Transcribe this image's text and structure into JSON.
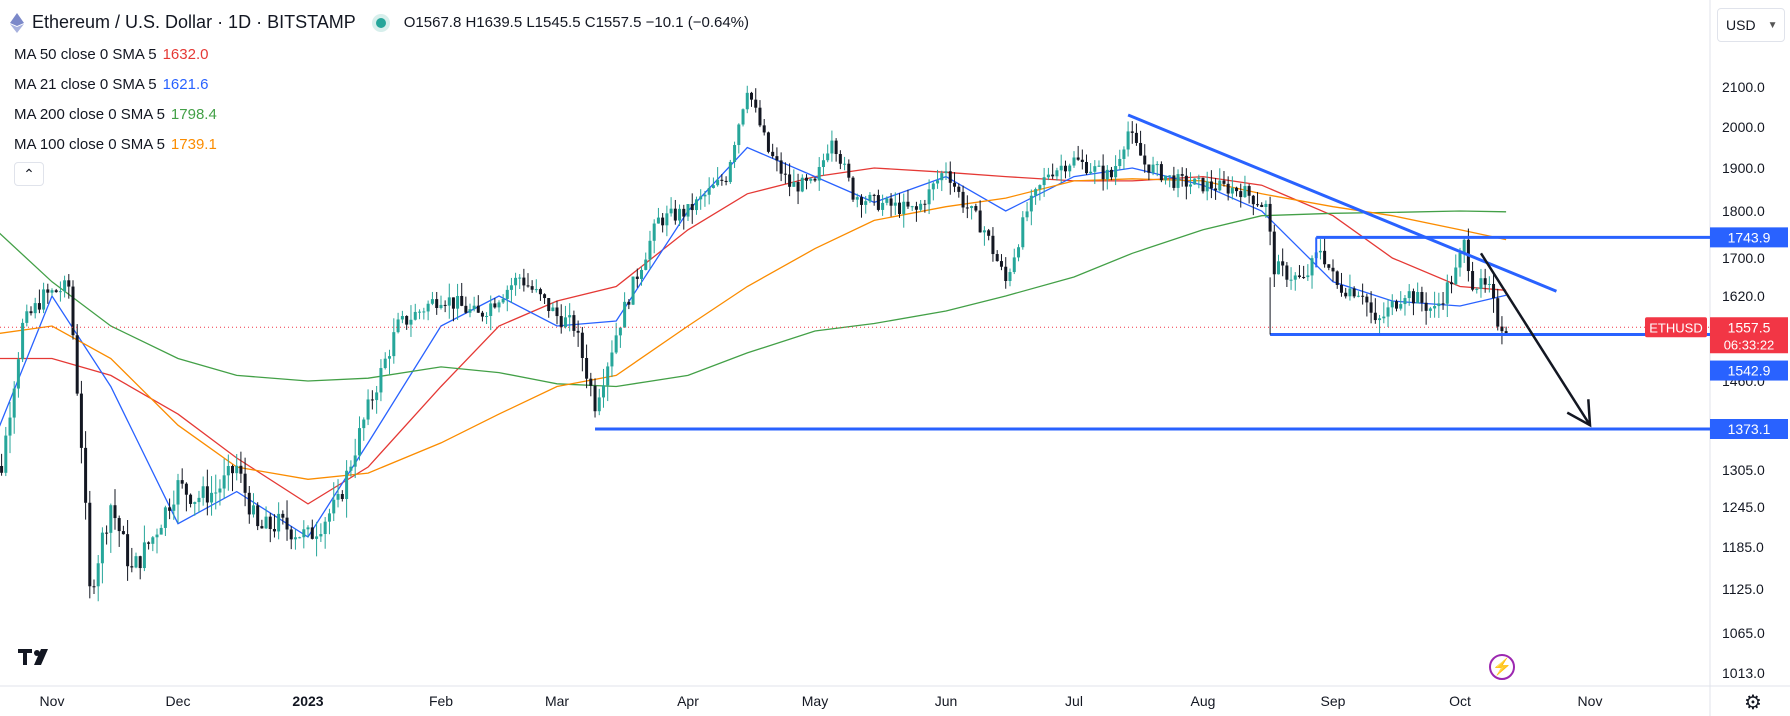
{
  "header": {
    "symbol_title": "Ethereum / U.S. Dollar · 1D · BITSTAMP",
    "ohlc": "O1567.8 H1639.5 L1545.5 C1557.5 −10.1 (−0.64%)"
  },
  "indicators": [
    {
      "label": "MA 50 close 0 SMA 5",
      "value": "1632.0",
      "color": "#e53935"
    },
    {
      "label": "MA 21 close 0 SMA 5",
      "value": "1621.6",
      "color": "#2962ff"
    },
    {
      "label": "MA 200 close 0 SMA 5",
      "value": "1798.4",
      "color": "#43a047"
    },
    {
      "label": "MA 100 close 0 SMA 5",
      "value": "1739.1",
      "color": "#fb8c00"
    }
  ],
  "currency_selector": "USD",
  "icons": {
    "collapse": "chevron-up-icon",
    "logo": "tradingview-logo",
    "flash": "lightning-icon",
    "settings": "gear-icon"
  },
  "colors": {
    "up": "#26a69a",
    "down": "#131722",
    "level": "#2962ff",
    "trend": "#2962ff",
    "price_tag": "#f23645"
  },
  "chart_data": {
    "type": "candlestick",
    "symbol": "ETHUSD",
    "y_axis": {
      "ticks": [
        "2100.0",
        "2000.0",
        "1900.0",
        "1800.0",
        "1700.0",
        "1620.0",
        "1540.0",
        "1460.0",
        "1373.1",
        "1305.0",
        "1245.0",
        "1185.0",
        "1125.0",
        "1065.0",
        "1013.0"
      ],
      "range": [
        1000,
        2160
      ]
    },
    "x_axis": {
      "ticks": [
        "Nov",
        "Dec",
        "2023",
        "Feb",
        "Mar",
        "Apr",
        "May",
        "Jun",
        "Jul",
        "Aug",
        "Sep",
        "Oct",
        "Nov"
      ],
      "dates": [
        "2022-11-01",
        "2022-12-01",
        "2023-01-01",
        "2023-02-01",
        "2023-03-01",
        "2023-04-01",
        "2023-05-01",
        "2023-06-01",
        "2023-07-01",
        "2023-08-01",
        "2023-09-01",
        "2023-10-01",
        "2023-11-01"
      ],
      "bold": [
        "2023"
      ]
    },
    "price_labels": [
      {
        "text": "1743.9",
        "price": 1743.9,
        "color": "#2962ff"
      },
      {
        "text": "ETHUSD",
        "price": 1557.5,
        "color": "#f23645",
        "role": "symbol"
      },
      {
        "text": "1557.5",
        "price": 1557.5,
        "color": "#f23645"
      },
      {
        "text": "06:33:22",
        "price": 1557.5,
        "color": "#f23645",
        "role": "countdown"
      },
      {
        "text": "1542.9",
        "price": 1542.9,
        "color": "#2962ff"
      },
      {
        "text": "1373.1",
        "price": 1373.1,
        "color": "#2962ff"
      }
    ],
    "drawings": {
      "horizontal_levels": [
        {
          "price": 1743.9,
          "from": "2023-08-28",
          "to": "axis"
        },
        {
          "price": 1542.9,
          "from": "2023-08-17",
          "to": "axis"
        },
        {
          "price": 1373.1,
          "from": "2023-03-10",
          "to": "axis"
        }
      ],
      "trend_line": {
        "from": {
          "date": "2023-07-14",
          "price": 2030
        },
        "to": {
          "date": "2023-10-24",
          "price": 1630
        }
      },
      "arrow": {
        "from": {
          "date": "2023-10-06",
          "price": 1710
        },
        "to": {
          "date": "2023-11-01",
          "price": 1380
        }
      },
      "range_box": {
        "from": "2023-08-17",
        "to": "2023-08-28",
        "top": 1743.9,
        "bottom": 1542.9
      }
    },
    "series": [
      {
        "name": "MA 50 close 0 SMA 5",
        "color": "#e53935",
        "points": [
          [
            "2022-10-15",
            1500
          ],
          [
            "2022-11-01",
            1500
          ],
          [
            "2022-11-15",
            1470
          ],
          [
            "2022-12-01",
            1400
          ],
          [
            "2022-12-15",
            1325
          ],
          [
            "2023-01-01",
            1250
          ],
          [
            "2023-01-15",
            1310
          ],
          [
            "2023-02-01",
            1450
          ],
          [
            "2023-02-15",
            1560
          ],
          [
            "2023-03-01",
            1610
          ],
          [
            "2023-03-15",
            1640
          ],
          [
            "2023-04-01",
            1760
          ],
          [
            "2023-04-15",
            1840
          ],
          [
            "2023-05-01",
            1880
          ],
          [
            "2023-05-15",
            1900
          ],
          [
            "2023-06-01",
            1890
          ],
          [
            "2023-06-15",
            1880
          ],
          [
            "2023-07-01",
            1870
          ],
          [
            "2023-07-15",
            1870
          ],
          [
            "2023-08-01",
            1880
          ],
          [
            "2023-08-15",
            1860
          ],
          [
            "2023-09-01",
            1790
          ],
          [
            "2023-09-15",
            1700
          ],
          [
            "2023-10-01",
            1640
          ],
          [
            "2023-10-12",
            1632
          ]
        ]
      },
      {
        "name": "MA 21 close 0 SMA 5",
        "color": "#2962ff",
        "points": [
          [
            "2022-10-15",
            1300
          ],
          [
            "2022-11-01",
            1620
          ],
          [
            "2022-11-15",
            1450
          ],
          [
            "2022-12-01",
            1220
          ],
          [
            "2022-12-15",
            1270
          ],
          [
            "2023-01-01",
            1200
          ],
          [
            "2023-01-15",
            1350
          ],
          [
            "2023-02-01",
            1560
          ],
          [
            "2023-02-15",
            1620
          ],
          [
            "2023-03-01",
            1560
          ],
          [
            "2023-03-15",
            1570
          ],
          [
            "2023-04-01",
            1800
          ],
          [
            "2023-04-15",
            1950
          ],
          [
            "2023-05-01",
            1880
          ],
          [
            "2023-05-15",
            1820
          ],
          [
            "2023-06-01",
            1880
          ],
          [
            "2023-06-15",
            1800
          ],
          [
            "2023-07-01",
            1880
          ],
          [
            "2023-07-15",
            1900
          ],
          [
            "2023-08-01",
            1860
          ],
          [
            "2023-08-15",
            1800
          ],
          [
            "2023-09-01",
            1650
          ],
          [
            "2023-09-15",
            1610
          ],
          [
            "2023-10-01",
            1600
          ],
          [
            "2023-10-12",
            1621.6
          ]
        ]
      },
      {
        "name": "MA 200 close 0 SMA 5",
        "color": "#43a047",
        "points": [
          [
            "2022-10-15",
            1790
          ],
          [
            "2022-11-01",
            1650
          ],
          [
            "2022-11-15",
            1560
          ],
          [
            "2022-12-01",
            1500
          ],
          [
            "2022-12-15",
            1470
          ],
          [
            "2023-01-01",
            1460
          ],
          [
            "2023-01-15",
            1465
          ],
          [
            "2023-02-01",
            1485
          ],
          [
            "2023-02-15",
            1475
          ],
          [
            "2023-03-01",
            1455
          ],
          [
            "2023-03-15",
            1450
          ],
          [
            "2023-04-01",
            1470
          ],
          [
            "2023-04-15",
            1510
          ],
          [
            "2023-05-01",
            1550
          ],
          [
            "2023-05-15",
            1565
          ],
          [
            "2023-06-01",
            1590
          ],
          [
            "2023-06-15",
            1620
          ],
          [
            "2023-07-01",
            1660
          ],
          [
            "2023-07-15",
            1710
          ],
          [
            "2023-08-01",
            1760
          ],
          [
            "2023-08-15",
            1790
          ],
          [
            "2023-09-01",
            1795
          ],
          [
            "2023-09-15",
            1797
          ],
          [
            "2023-10-01",
            1800
          ],
          [
            "2023-10-12",
            1798.4
          ]
        ]
      },
      {
        "name": "MA 100 close 0 SMA 5",
        "color": "#fb8c00",
        "points": [
          [
            "2022-10-15",
            1540
          ],
          [
            "2022-11-01",
            1560
          ],
          [
            "2022-11-15",
            1500
          ],
          [
            "2022-12-01",
            1380
          ],
          [
            "2022-12-15",
            1310
          ],
          [
            "2023-01-01",
            1290
          ],
          [
            "2023-01-15",
            1300
          ],
          [
            "2023-02-01",
            1350
          ],
          [
            "2023-02-15",
            1400
          ],
          [
            "2023-03-01",
            1450
          ],
          [
            "2023-03-15",
            1470
          ],
          [
            "2023-04-01",
            1560
          ],
          [
            "2023-04-15",
            1640
          ],
          [
            "2023-05-01",
            1720
          ],
          [
            "2023-05-15",
            1780
          ],
          [
            "2023-06-01",
            1810
          ],
          [
            "2023-06-15",
            1830
          ],
          [
            "2023-07-01",
            1870
          ],
          [
            "2023-07-15",
            1875
          ],
          [
            "2023-08-01",
            1870
          ],
          [
            "2023-08-15",
            1840
          ],
          [
            "2023-09-01",
            1810
          ],
          [
            "2023-09-15",
            1790
          ],
          [
            "2023-10-01",
            1760
          ],
          [
            "2023-10-12",
            1739.1
          ]
        ]
      }
    ],
    "candle_path": [
      [
        "2022-10-15",
        1290
      ],
      [
        "2022-10-20",
        1310
      ],
      [
        "2022-10-25",
        1560
      ],
      [
        "2022-10-30",
        1620
      ],
      [
        "2022-11-05",
        1640
      ],
      [
        "2022-11-08",
        1350
      ],
      [
        "2022-11-10",
        1120
      ],
      [
        "2022-11-15",
        1250
      ],
      [
        "2022-11-20",
        1150
      ],
      [
        "2022-11-25",
        1200
      ],
      [
        "2022-12-01",
        1280
      ],
      [
        "2022-12-05",
        1260
      ],
      [
        "2022-12-10",
        1270
      ],
      [
        "2022-12-15",
        1310
      ],
      [
        "2022-12-20",
        1210
      ],
      [
        "2022-12-25",
        1220
      ],
      [
        "2023-01-01",
        1200
      ],
      [
        "2023-01-08",
        1250
      ],
      [
        "2023-01-15",
        1410
      ],
      [
        "2023-01-22",
        1560
      ],
      [
        "2023-02-01",
        1620
      ],
      [
        "2023-02-10",
        1580
      ],
      [
        "2023-02-20",
        1660
      ],
      [
        "2023-03-01",
        1580
      ],
      [
        "2023-03-05",
        1560
      ],
      [
        "2023-03-10",
        1420
      ],
      [
        "2023-03-18",
        1620
      ],
      [
        "2023-03-25",
        1780
      ],
      [
        "2023-04-01",
        1800
      ],
      [
        "2023-04-10",
        1880
      ],
      [
        "2023-04-15",
        2100
      ],
      [
        "2023-04-20",
        1940
      ],
      [
        "2023-04-25",
        1860
      ],
      [
        "2023-05-01",
        1860
      ],
      [
        "2023-05-05",
        1980
      ],
      [
        "2023-05-10",
        1840
      ],
      [
        "2023-05-15",
        1820
      ],
      [
        "2023-05-20",
        1810
      ],
      [
        "2023-05-25",
        1800
      ],
      [
        "2023-06-01",
        1900
      ],
      [
        "2023-06-05",
        1820
      ],
      [
        "2023-06-10",
        1760
      ],
      [
        "2023-06-15",
        1650
      ],
      [
        "2023-06-20",
        1800
      ],
      [
        "2023-06-25",
        1890
      ],
      [
        "2023-07-01",
        1920
      ],
      [
        "2023-07-05",
        1900
      ],
      [
        "2023-07-10",
        1880
      ],
      [
        "2023-07-14",
        1990
      ],
      [
        "2023-07-18",
        1910
      ],
      [
        "2023-07-25",
        1870
      ],
      [
        "2023-08-01",
        1860
      ],
      [
        "2023-08-10",
        1850
      ],
      [
        "2023-08-16",
        1810
      ],
      [
        "2023-08-18",
        1680
      ],
      [
        "2023-08-25",
        1650
      ],
      [
        "2023-08-29",
        1720
      ],
      [
        "2023-09-02",
        1640
      ],
      [
        "2023-09-08",
        1630
      ],
      [
        "2023-09-11",
        1560
      ],
      [
        "2023-09-18",
        1630
      ],
      [
        "2023-09-25",
        1590
      ],
      [
        "2023-09-30",
        1670
      ],
      [
        "2023-10-02",
        1730
      ],
      [
        "2023-10-04",
        1650
      ],
      [
        "2023-10-08",
        1630
      ],
      [
        "2023-10-10",
        1570
      ],
      [
        "2023-10-12",
        1557.5
      ]
    ]
  }
}
